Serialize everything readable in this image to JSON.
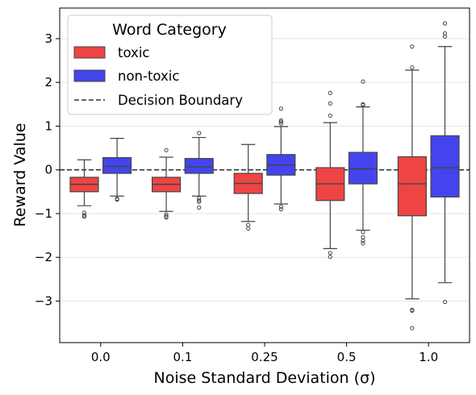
{
  "chart_data": {
    "type": "box",
    "xlabel": "Noise Standard Deviation (σ)",
    "ylabel": "Reward Value",
    "categories": [
      "0.0",
      "0.1",
      "0.25",
      "0.5",
      "1.0"
    ],
    "ylim": [
      -3.95,
      3.7
    ],
    "yticks": [
      -3,
      -2,
      -1,
      0,
      1,
      2,
      3
    ],
    "ytick_labels": [
      "−3",
      "−2",
      "−1",
      "0",
      "1",
      "2",
      "3"
    ],
    "grid": "horizontal",
    "decision_boundary": 0,
    "legend": {
      "title": "Word Category",
      "placement": "top-left",
      "entries": [
        "toxic",
        "non-toxic",
        "Decision Boundary"
      ]
    },
    "series": [
      {
        "name": "toxic",
        "color": "#ee4444",
        "boxes": [
          {
            "whislo": -0.82,
            "q1": -0.5,
            "med": -0.33,
            "q3": -0.17,
            "whishi": 0.23,
            "fliers": [
              -0.98,
              -1.04,
              -1.07
            ]
          },
          {
            "whislo": -0.95,
            "q1": -0.5,
            "med": -0.33,
            "q3": -0.17,
            "whishi": 0.29,
            "fliers": [
              0.45,
              -1.02,
              -1.06,
              -1.09
            ]
          },
          {
            "whislo": -1.18,
            "q1": -0.54,
            "med": -0.31,
            "q3": -0.08,
            "whishi": 0.58,
            "fliers": [
              -1.26,
              -1.34
            ]
          },
          {
            "whislo": -1.8,
            "q1": -0.7,
            "med": -0.32,
            "q3": 0.05,
            "whishi": 1.08,
            "fliers": [
              1.24,
              1.52,
              1.76,
              -1.9,
              -1.99
            ]
          },
          {
            "whislo": -2.95,
            "q1": -1.05,
            "med": -0.32,
            "q3": 0.3,
            "whishi": 2.28,
            "fliers": [
              2.34,
              2.82,
              -3.2,
              -3.22,
              -3.62
            ]
          }
        ]
      },
      {
        "name": "non-toxic",
        "color": "#4444ee",
        "boxes": [
          {
            "whislo": -0.6,
            "q1": -0.08,
            "med": 0.08,
            "q3": 0.28,
            "whishi": 0.72,
            "fliers": [
              -0.66,
              -0.68
            ]
          },
          {
            "whislo": -0.6,
            "q1": -0.08,
            "med": 0.07,
            "q3": 0.26,
            "whishi": 0.74,
            "fliers": [
              0.84,
              -0.65,
              -0.7,
              -0.73,
              -0.86
            ]
          },
          {
            "whislo": -0.78,
            "q1": -0.12,
            "med": 0.11,
            "q3": 0.35,
            "whishi": 0.99,
            "fliers": [
              1.06,
              1.1,
              1.13,
              1.4,
              -0.84,
              -0.9
            ]
          },
          {
            "whislo": -1.38,
            "q1": -0.32,
            "med": 0.02,
            "q3": 0.4,
            "whishi": 1.44,
            "fliers": [
              1.48,
              1.5,
              2.02,
              -1.42,
              -1.54,
              -1.62,
              -1.68
            ]
          },
          {
            "whislo": -2.58,
            "q1": -0.62,
            "med": 0.05,
            "q3": 0.78,
            "whishi": 2.82,
            "fliers": [
              3.05,
              3.12,
              3.35,
              -3.02
            ]
          }
        ]
      }
    ]
  }
}
